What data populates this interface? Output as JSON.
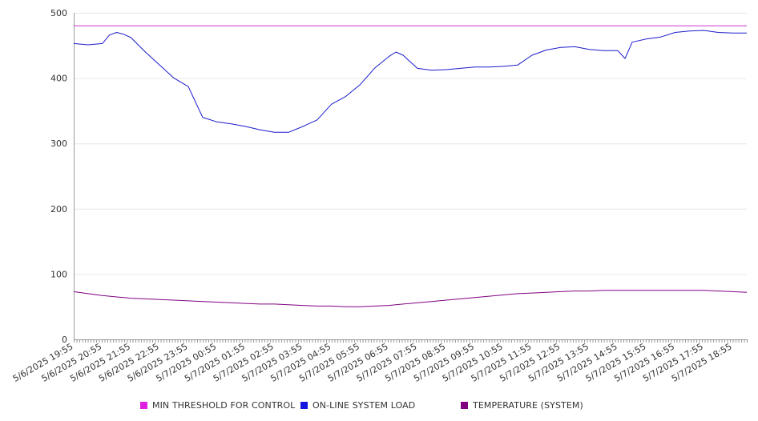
{
  "chart_data": {
    "type": "line",
    "title": "",
    "xlabel": "",
    "ylabel": "",
    "ylim": [
      0,
      500
    ],
    "yticks": [
      0,
      100,
      200,
      300,
      400,
      500
    ],
    "grid": true,
    "legend_position": "bottom",
    "x_labels": [
      "5/6/2025 19:55",
      "5/6/2025 20:55",
      "5/6/2025 21:55",
      "5/6/2025 22:55",
      "5/6/2025 23:55",
      "5/7/2025 00:55",
      "5/7/2025 01:55",
      "5/7/2025 02:55",
      "5/7/2025 03:55",
      "5/7/2025 04:55",
      "5/7/2025 05:55",
      "5/7/2025 06:55",
      "5/7/2025 07:55",
      "5/7/2025 08:55",
      "5/7/2025 09:55",
      "5/7/2025 10:55",
      "5/7/2025 11:55",
      "5/7/2025 12:55",
      "5/7/2025 13:55",
      "5/7/2025 14:55",
      "5/7/2025 15:55",
      "5/7/2025 16:55",
      "5/7/2025 17:55",
      "5/7/2025 18:55"
    ],
    "x": [
      "5/6/2025 19:55",
      "5/6/2025 20:25",
      "5/6/2025 20:55",
      "5/6/2025 21:10",
      "5/6/2025 21:25",
      "5/6/2025 21:40",
      "5/6/2025 21:55",
      "5/6/2025 22:25",
      "5/6/2025 22:55",
      "5/6/2025 23:25",
      "5/6/2025 23:55",
      "5/7/2025 00:25",
      "5/7/2025 00:55",
      "5/7/2025 01:25",
      "5/7/2025 01:55",
      "5/7/2025 02:25",
      "5/7/2025 02:55",
      "5/7/2025 03:25",
      "5/7/2025 03:55",
      "5/7/2025 04:25",
      "5/7/2025 04:55",
      "5/7/2025 05:25",
      "5/7/2025 05:55",
      "5/7/2025 06:25",
      "5/7/2025 06:55",
      "5/7/2025 07:10",
      "5/7/2025 07:25",
      "5/7/2025 07:55",
      "5/7/2025 08:25",
      "5/7/2025 08:55",
      "5/7/2025 09:25",
      "5/7/2025 09:55",
      "5/7/2025 10:25",
      "5/7/2025 10:55",
      "5/7/2025 11:25",
      "5/7/2025 11:55",
      "5/7/2025 12:25",
      "5/7/2025 12:55",
      "5/7/2025 13:25",
      "5/7/2025 13:55",
      "5/7/2025 14:25",
      "5/7/2025 14:55",
      "5/7/2025 15:10",
      "5/7/2025 15:25",
      "5/7/2025 15:55",
      "5/7/2025 16:25",
      "5/7/2025 16:55",
      "5/7/2025 17:25",
      "5/7/2025 17:55",
      "5/7/2025 18:25",
      "5/7/2025 18:55",
      "5/7/2025 19:25"
    ],
    "series": [
      {
        "name": "MIN THRESHOLD FOR CONTROL",
        "color": "#cc33cc",
        "values": [
          480,
          480,
          480,
          480,
          480,
          480,
          480,
          480,
          480,
          480,
          480,
          480,
          480,
          480,
          480,
          480,
          480,
          480,
          480,
          480,
          480,
          480,
          480,
          480,
          480,
          480,
          480,
          480,
          480,
          480,
          480,
          480,
          480,
          480,
          480,
          480,
          480,
          480,
          480,
          480,
          480,
          480,
          480,
          480,
          480,
          480,
          480,
          480,
          480,
          480,
          480,
          480
        ]
      },
      {
        "name": "ON-LINE SYSTEM LOAD",
        "color": "#1a1acc",
        "values": [
          453,
          451,
          453,
          466,
          470,
          467,
          462,
          440,
          420,
          400,
          387,
          340,
          333,
          330,
          326,
          321,
          317,
          317,
          326,
          336,
          360,
          372,
          390,
          415,
          433,
          440,
          435,
          415,
          412,
          413,
          415,
          417,
          417,
          418,
          420,
          435,
          443,
          447,
          448,
          444,
          442,
          442,
          430,
          455,
          460,
          463,
          470,
          472,
          473,
          470,
          469,
          469
        ]
      },
      {
        "name": "TEMPERATURE (SYSTEM)",
        "color": "#800080",
        "values": [
          73,
          70,
          67,
          66,
          65,
          64,
          63,
          62,
          61,
          60,
          59,
          58,
          57,
          56,
          55,
          54,
          54,
          53,
          52,
          51,
          51,
          50,
          50,
          51,
          52,
          53,
          54,
          56,
          58,
          60,
          62,
          64,
          66,
          68,
          70,
          71,
          72,
          73,
          74,
          74,
          75,
          75,
          75,
          75,
          75,
          75,
          75,
          75,
          75,
          74,
          73,
          72
        ]
      }
    ]
  },
  "colors": {
    "axis": "#999999",
    "grid": "#e6e6e6",
    "text": "#333333"
  }
}
